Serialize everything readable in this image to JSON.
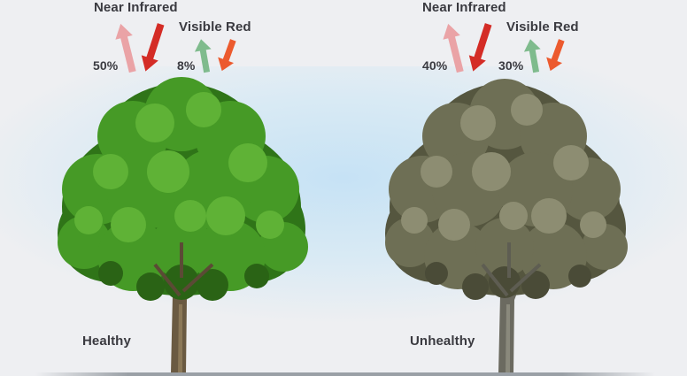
{
  "healthy": {
    "nir_title": "Near Infrared",
    "red_title": "Visible Red",
    "nir_reflect_pct": "50%",
    "red_reflect_pct": "8%",
    "status_label": "Healthy"
  },
  "unhealthy": {
    "nir_title": "Near Infrared",
    "red_title": "Visible Red",
    "nir_reflect_pct": "40%",
    "red_reflect_pct": "30%",
    "status_label": "Unhealthy"
  },
  "colors": {
    "nir_reflected": "#eaa3a6",
    "nir_incoming": "#d42c26",
    "red_reflected": "#7fbb8d",
    "red_incoming": "#ec5a2e",
    "healthy_canopy": "#3f8f22",
    "unhealthy_canopy": "#6e6f55",
    "trunk": "#6a5a42",
    "sky_glow": "#c4e1f5"
  }
}
